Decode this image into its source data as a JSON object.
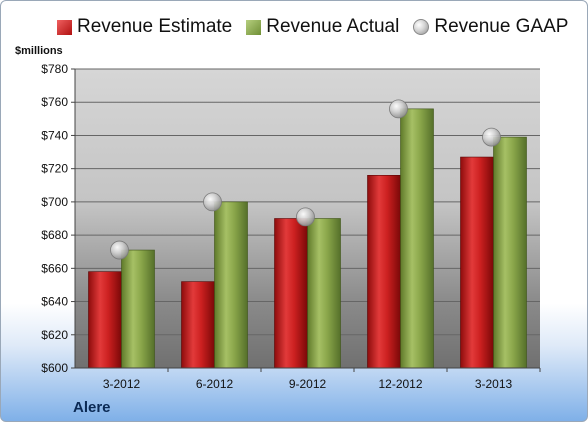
{
  "chart_data": {
    "type": "bar",
    "title": "Alere",
    "ylabel": "$millions",
    "categories": [
      "3-2012",
      "6-2012",
      "9-2012",
      "12-2012",
      "3-2013"
    ],
    "series": [
      {
        "name": "Revenue Estimate",
        "values": [
          658,
          652,
          690,
          716,
          727
        ],
        "color": "#c81e1e"
      },
      {
        "name": "Revenue Actual",
        "values": [
          671,
          700,
          690,
          756,
          739
        ],
        "color": "#8aa64a"
      },
      {
        "name": "Revenue GAAP",
        "values": [
          671,
          700,
          691,
          756,
          739
        ],
        "color": "#b0b0b0",
        "marker": "sphere"
      }
    ],
    "ylim": [
      600,
      780
    ],
    "yticks": [
      600,
      620,
      640,
      660,
      680,
      700,
      720,
      740,
      760,
      780
    ],
    "ytick_labels": [
      "$600",
      "$620",
      "$640",
      "$660",
      "$680",
      "$700",
      "$720",
      "$740",
      "$760",
      "$780"
    ],
    "grid": true,
    "legend_position": "top"
  }
}
